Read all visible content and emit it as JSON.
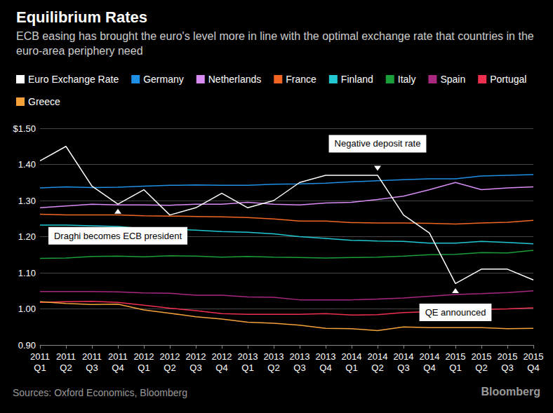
{
  "chart_data": {
    "type": "line",
    "title": "Equilibrium Rates",
    "subtitle": "ECB easing has brought the euro's level more in line with the optimal exchange rate that countries in the euro-area periphery need",
    "source": "Sources: Oxford Economics, Bloomberg",
    "credit": "Bloomberg",
    "legend": "top",
    "grid": true,
    "categories": [
      "2011 Q1",
      "2011 Q2",
      "2011 Q3",
      "2011 Q4",
      "2012 Q1",
      "2012 Q2",
      "2012 Q3",
      "2012 Q4",
      "2013 Q1",
      "2013 Q2",
      "2013 Q3",
      "2013 Q4",
      "2014 Q1",
      "2014 Q2",
      "2014 Q3",
      "2014 Q4",
      "2015 Q1",
      "2015 Q2",
      "2015 Q3",
      "2015 Q4"
    ],
    "ylim": [
      0.9,
      1.5
    ],
    "yticks": [
      {
        "value": 0.9,
        "label": "0.90"
      },
      {
        "value": 1.0,
        "label": "1.00"
      },
      {
        "value": 1.1,
        "label": "1.10"
      },
      {
        "value": 1.2,
        "label": "1.20"
      },
      {
        "value": 1.3,
        "label": "1.30"
      },
      {
        "value": 1.4,
        "label": "1.40"
      },
      {
        "value": 1.5,
        "label": "$1.50"
      }
    ],
    "series": [
      {
        "name": "Euro Exchange Rate",
        "color": "#ffffff",
        "values": [
          1.41,
          1.45,
          1.34,
          1.29,
          1.33,
          1.26,
          1.28,
          1.32,
          1.28,
          1.3,
          1.35,
          1.37,
          1.37,
          1.37,
          1.26,
          1.21,
          1.07,
          1.11,
          1.11,
          1.08
        ]
      },
      {
        "name": "Germany",
        "color": "#1f8fe5",
        "values": [
          1.335,
          1.338,
          1.336,
          1.337,
          1.34,
          1.342,
          1.343,
          1.342,
          1.342,
          1.345,
          1.346,
          1.348,
          1.352,
          1.355,
          1.358,
          1.36,
          1.36,
          1.368,
          1.37,
          1.372
        ]
      },
      {
        "name": "Netherlands",
        "color": "#d98cf5",
        "values": [
          1.28,
          1.285,
          1.29,
          1.288,
          1.288,
          1.287,
          1.29,
          1.29,
          1.295,
          1.29,
          1.288,
          1.293,
          1.295,
          1.303,
          1.312,
          1.33,
          1.35,
          1.33,
          1.335,
          1.338
        ]
      },
      {
        "name": "France",
        "color": "#f26522",
        "values": [
          1.262,
          1.26,
          1.26,
          1.26,
          1.258,
          1.257,
          1.256,
          1.255,
          1.253,
          1.249,
          1.243,
          1.243,
          1.239,
          1.238,
          1.238,
          1.237,
          1.235,
          1.238,
          1.24,
          1.245
        ]
      },
      {
        "name": "Finland",
        "color": "#21c7d1",
        "values": [
          1.232,
          1.232,
          1.23,
          1.228,
          1.222,
          1.221,
          1.218,
          1.214,
          1.212,
          1.208,
          1.2,
          1.195,
          1.19,
          1.188,
          1.187,
          1.182,
          1.182,
          1.187,
          1.184,
          1.18
        ]
      },
      {
        "name": "Italy",
        "color": "#1a9e3a",
        "values": [
          1.14,
          1.141,
          1.145,
          1.146,
          1.144,
          1.147,
          1.146,
          1.143,
          1.145,
          1.143,
          1.142,
          1.141,
          1.142,
          1.143,
          1.146,
          1.15,
          1.151,
          1.156,
          1.155,
          1.162
        ]
      },
      {
        "name": "Spain",
        "color": "#a8277f",
        "values": [
          1.048,
          1.048,
          1.048,
          1.047,
          1.044,
          1.043,
          1.038,
          1.038,
          1.033,
          1.032,
          1.025,
          1.025,
          1.025,
          1.027,
          1.03,
          1.035,
          1.04,
          1.042,
          1.045,
          1.05
        ]
      },
      {
        "name": "Portugal",
        "color": "#ee2f4f",
        "values": [
          1.018,
          1.02,
          1.021,
          1.018,
          1.01,
          1.002,
          0.995,
          0.987,
          0.985,
          0.985,
          0.985,
          0.987,
          0.983,
          0.984,
          0.99,
          0.992,
          0.995,
          0.998,
          1.0,
          1.003
        ]
      },
      {
        "name": "Greece",
        "color": "#f5a23a",
        "values": [
          1.02,
          1.015,
          1.012,
          1.013,
          0.997,
          0.988,
          0.978,
          0.972,
          0.963,
          0.96,
          0.955,
          0.946,
          0.945,
          0.94,
          0.95,
          0.948,
          0.948,
          0.948,
          0.945,
          0.946
        ]
      }
    ],
    "annotations": [
      {
        "text": "Draghi becomes ECB president",
        "x": "2011 Q4"
      },
      {
        "text": "Negative deposit rate",
        "x": "2014 Q2"
      },
      {
        "text": "QE announced",
        "x": "2015 Q1"
      }
    ]
  }
}
